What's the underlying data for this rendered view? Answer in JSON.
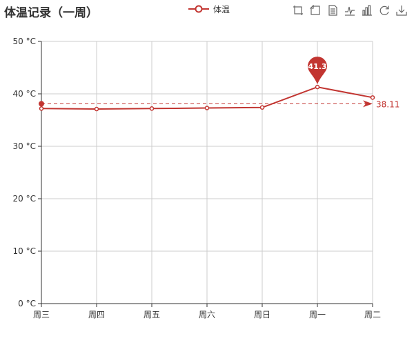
{
  "chart_data": {
    "type": "line",
    "title": "体温记录（一周）",
    "categories": [
      "周三",
      "周四",
      "周五",
      "周六",
      "周日",
      "周一",
      "周二"
    ],
    "series": [
      {
        "name": "体温",
        "values": [
          37.2,
          37.1,
          37.2,
          37.3,
          37.4,
          41.3,
          39.3
        ],
        "color": "#c23531",
        "mark_point": {
          "label": "41.3",
          "value": 41.3,
          "index": 5
        },
        "mark_line": {
          "type": "average",
          "value": 38.11,
          "label": "38.11"
        }
      }
    ],
    "ylim": [
      0,
      50
    ],
    "yticks": [
      0,
      10,
      20,
      30,
      40,
      50
    ],
    "ytick_suffix": " °C",
    "grid": true,
    "legend_position": "top-center"
  },
  "toolbox": {
    "icons": [
      "zoom-icon",
      "zoom-reset-icon",
      "data-view-icon",
      "line-type-icon",
      "bar-type-icon",
      "restore-icon",
      "save-image-icon"
    ]
  }
}
